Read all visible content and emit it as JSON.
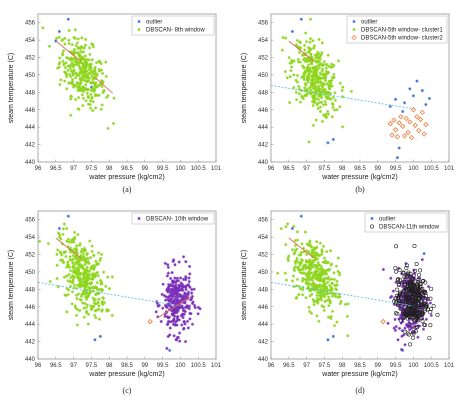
{
  "chart_data": [
    {
      "id": "a",
      "type": "scatter",
      "caption": "(a)",
      "xlabel": "water pressure (kg/cm2)",
      "ylabel": "steam temperature (C)",
      "xlim": [
        96,
        101
      ],
      "ylim": [
        440,
        457
      ],
      "xticks": [
        "96",
        "96.5",
        "97",
        "97.5",
        "98",
        "98.5",
        "99",
        "99.5",
        "100",
        "100.5",
        "101"
      ],
      "yticks": [
        "440",
        "442",
        "444",
        "446",
        "448",
        "450",
        "452",
        "454",
        "456"
      ],
      "legend_position": "top-right",
      "series": [
        {
          "name": "outlier",
          "marker": "star",
          "color": "#3b6fd6",
          "points": [
            [
              96.85,
              456.4
            ],
            [
              96.6,
              455.0
            ],
            [
              96.5,
              453.9
            ],
            [
              97.5,
              448.6
            ]
          ]
        },
        {
          "name": "DBSCAN- 8th window",
          "marker": "star",
          "color": "#8ed61e",
          "cloud": {
            "center": [
              97.25,
              450.3
            ],
            "spread": [
              0.32,
              2.3
            ],
            "n": 330,
            "slope": -2.8
          }
        }
      ],
      "lines": [
        {
          "color": "#e06a5a",
          "points": [
            [
              96.5,
              453.9
            ],
            [
              97.2,
              451.6
            ]
          ]
        },
        {
          "color": "#e06a5a",
          "points": [
            [
              97.6,
              449.7
            ],
            [
              98.1,
              447.9
            ]
          ]
        }
      ]
    },
    {
      "id": "b",
      "type": "scatter",
      "caption": "(b)",
      "xlabel": "water pressure (kg/cm2)",
      "ylabel": "steam temperature (C)",
      "xlim": [
        96,
        101
      ],
      "ylim": [
        440,
        457
      ],
      "xticks": [
        "96",
        "96.5",
        "97",
        "97.5",
        "98",
        "98.5",
        "99",
        "99.5",
        "100",
        "100.5",
        "101"
      ],
      "yticks": [
        "440",
        "442",
        "444",
        "446",
        "448",
        "450",
        "452",
        "454",
        "456"
      ],
      "legend_position": "top-right",
      "series": [
        {
          "name": "outlier",
          "marker": "star",
          "color": "#3b6fd6",
          "points": [
            [
              96.85,
              456.4
            ],
            [
              96.6,
              455.0
            ],
            [
              97.6,
              442.2
            ],
            [
              97.75,
              442.6
            ],
            [
              99.55,
              440.5
            ],
            [
              99.6,
              441.6
            ],
            [
              99.9,
              448.4
            ],
            [
              100.1,
              449.3
            ],
            [
              100.0,
              447.6
            ],
            [
              99.75,
              446.8
            ],
            [
              100.25,
              448.2
            ],
            [
              99.5,
              447.2
            ],
            [
              99.35,
              446.4
            ],
            [
              99.7,
              445.8
            ],
            [
              100.35,
              446.6
            ],
            [
              100.45,
              447.3
            ]
          ]
        },
        {
          "name": "DBSCAN-5th window- cluster1",
          "marker": "star",
          "color": "#8ed61e",
          "cloud": {
            "center": [
              97.25,
              449.6
            ],
            "spread": [
              0.32,
              2.6
            ],
            "n": 390,
            "slope": -3.0
          }
        },
        {
          "name": "DBSCAN-5th window- cluster2",
          "marker": "diamond",
          "color": "#f07a3e",
          "points": [
            [
              99.35,
              444.4
            ],
            [
              99.45,
              444.8
            ],
            [
              99.5,
              443.7
            ],
            [
              99.6,
              444.5
            ],
            [
              99.65,
              445.2
            ],
            [
              99.7,
              444.1
            ],
            [
              99.8,
              445.0
            ],
            [
              99.85,
              443.4
            ],
            [
              99.9,
              444.6
            ],
            [
              99.95,
              442.8
            ],
            [
              100.05,
              444.2
            ],
            [
              100.1,
              445.2
            ],
            [
              100.15,
              443.6
            ],
            [
              100.2,
              444.9
            ],
            [
              100.3,
              443.2
            ],
            [
              100.35,
              444.3
            ],
            [
              99.55,
              442.9
            ],
            [
              99.75,
              443.0
            ],
            [
              100.0,
              446.0
            ],
            [
              100.25,
              445.7
            ],
            [
              99.4,
              443.1
            ]
          ]
        }
      ],
      "lines": [
        {
          "color": "#e06a5a",
          "points": [
            [
              96.5,
              453.9
            ],
            [
              97.2,
              451.6
            ]
          ]
        },
        {
          "color": "#5ec4e8",
          "dashed": true,
          "points": [
            [
              96.0,
              448.8
            ],
            [
              100.0,
              446.1
            ]
          ]
        }
      ]
    },
    {
      "id": "c",
      "type": "scatter",
      "caption": "(c)",
      "xlabel": "water pressure (kg/cm2)",
      "ylabel": "steam temperature (C)",
      "xlim": [
        96,
        101
      ],
      "ylim": [
        440,
        457
      ],
      "xticks": [
        "96",
        "96.5",
        "97",
        "97.5",
        "98",
        "98.5",
        "99",
        "99.5",
        "100",
        "100.5",
        "101"
      ],
      "yticks": [
        "440",
        "442",
        "444",
        "446",
        "448",
        "450",
        "452",
        "454",
        "456"
      ],
      "legend_position": "top-right",
      "series": [
        {
          "name": "",
          "marker": "star",
          "color": "#3b6fd6",
          "points": [
            [
              96.85,
              456.4
            ],
            [
              96.6,
              455.0
            ],
            [
              97.6,
              442.2
            ],
            [
              97.75,
              442.6
            ],
            [
              99.7,
              441.0
            ]
          ]
        },
        {
          "name": "",
          "marker": "star",
          "color": "#8ed61e",
          "cloud": {
            "center": [
              97.25,
              449.6
            ],
            "spread": [
              0.32,
              2.6
            ],
            "n": 390,
            "slope": -3.0
          }
        },
        {
          "name": "",
          "marker": "diamond",
          "color": "#f07a3e",
          "points": [
            [
              99.15,
              444.3
            ]
          ]
        },
        {
          "name": "DBSCAN- 10th window",
          "marker": "star",
          "color": "#7a2fb8",
          "cloud": {
            "center": [
              99.9,
              446.5
            ],
            "spread": [
              0.22,
              2.4
            ],
            "n": 300,
            "slope": 0
          }
        }
      ],
      "lines": [
        {
          "color": "#e06a5a",
          "points": [
            [
              96.5,
              453.9
            ],
            [
              97.2,
              451.6
            ]
          ]
        },
        {
          "color": "#5ec4e8",
          "dashed": true,
          "points": [
            [
              96.0,
              448.8
            ],
            [
              100.0,
              446.1
            ]
          ]
        },
        {
          "color": "#e06a5a",
          "points": [
            [
              99.35,
              444.7
            ],
            [
              100.3,
              447.2
            ]
          ]
        }
      ]
    },
    {
      "id": "d",
      "type": "scatter",
      "caption": "(d)",
      "xlabel": "water pressure (kg/cm2)",
      "ylabel": "steam temperature (C)",
      "xlim": [
        96,
        101
      ],
      "ylim": [
        440,
        457
      ],
      "xticks": [
        "96",
        "96.5",
        "97",
        "97.5",
        "98",
        "98.5",
        "99",
        "99.5",
        "100",
        "100.5",
        "101"
      ],
      "yticks": [
        "440",
        "442",
        "444",
        "446",
        "448",
        "450",
        "452",
        "454",
        "456"
      ],
      "legend_position": "top-right",
      "series": [
        {
          "name": "outlier",
          "marker": "star",
          "color": "#3b6fd6",
          "points": [
            [
              96.85,
              456.4
            ],
            [
              96.6,
              455.0
            ],
            [
              97.6,
              442.2
            ],
            [
              97.75,
              442.6
            ],
            [
              99.7,
              441.0
            ],
            [
              100.3,
              452.1
            ]
          ]
        },
        {
          "name": "",
          "marker": "star",
          "color": "#8ed61e",
          "cloud": {
            "center": [
              97.25,
              449.6
            ],
            "spread": [
              0.32,
              2.6
            ],
            "n": 390,
            "slope": -3.0
          }
        },
        {
          "name": "",
          "marker": "diamond",
          "color": "#f07a3e",
          "points": [
            [
              99.15,
              444.3
            ]
          ]
        },
        {
          "name": "",
          "marker": "star",
          "color": "#7a2fb8",
          "cloud": {
            "center": [
              99.9,
              446.5
            ],
            "spread": [
              0.22,
              2.4
            ],
            "n": 260,
            "slope": 0
          }
        },
        {
          "name": "DBSCAN-11th window",
          "marker": "circle",
          "color": "#1f1f1f",
          "cloud": {
            "center": [
              99.95,
              446.8
            ],
            "spread": [
              0.22,
              2.3
            ],
            "n": 300,
            "slope": 0
          }
        }
      ],
      "lines": [
        {
          "color": "#e06a5a",
          "points": [
            [
              96.5,
              453.9
            ],
            [
              97.2,
              451.6
            ]
          ]
        },
        {
          "color": "#5ec4e8",
          "dashed": true,
          "points": [
            [
              96.0,
              448.8
            ],
            [
              100.0,
              446.1
            ]
          ]
        }
      ]
    }
  ]
}
